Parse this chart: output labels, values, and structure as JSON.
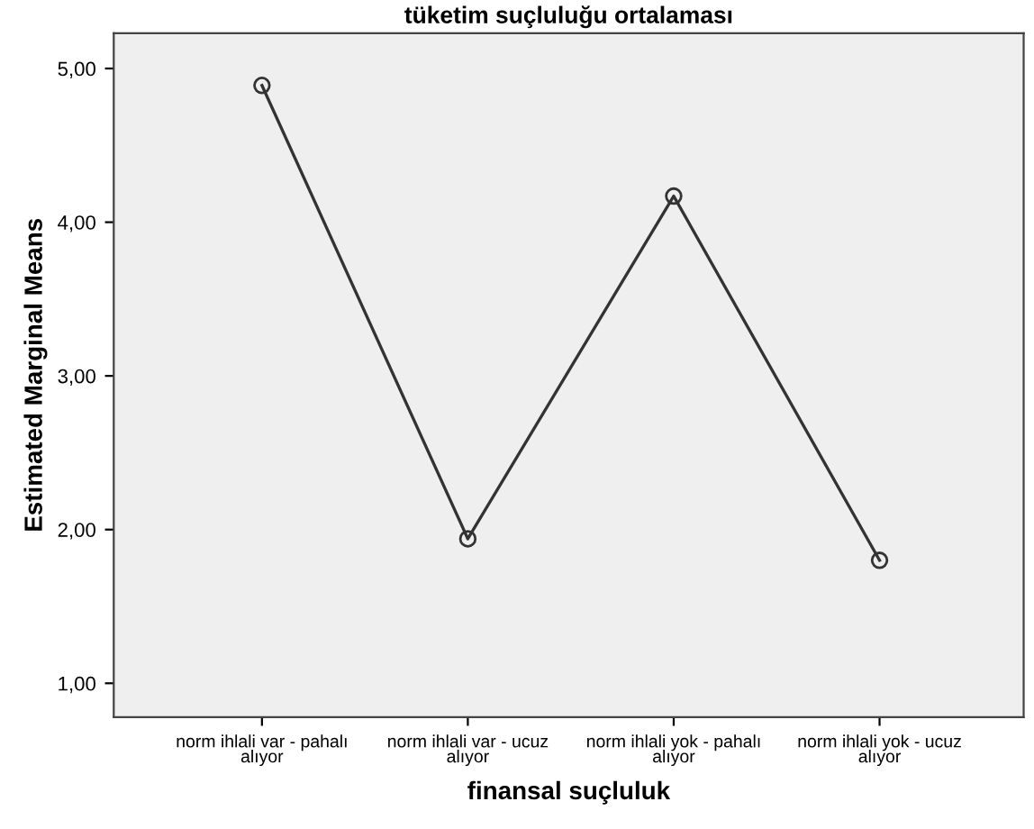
{
  "chart_data": {
    "type": "line",
    "title": "tüketim suçluluğu ortalaması",
    "xlabel": "finansal suçluluk",
    "ylabel": "Estimated Marginal Means",
    "categories": [
      "norm ihlali var - pahalı\nalıyor",
      "norm ihlali var - ucuz\nalıyor",
      "norm ihlali yok - pahalı\nalıyor",
      "norm ihlali yok - ucuz\nalıyor"
    ],
    "series": [
      {
        "color": "#333333",
        "values": [
          4.89,
          1.94,
          4.17,
          1.8
        ]
      }
    ],
    "ylim": [
      0.78,
      5.23
    ],
    "yticks": [
      {
        "value": 1,
        "label": "1,00"
      },
      {
        "value": 2,
        "label": "2,00"
      },
      {
        "value": 3,
        "label": "3,00"
      },
      {
        "value": 4,
        "label": "4,00"
      },
      {
        "value": 5,
        "label": "5,00"
      }
    ],
    "marker": "circle",
    "line_style": "solid",
    "grid": false
  }
}
